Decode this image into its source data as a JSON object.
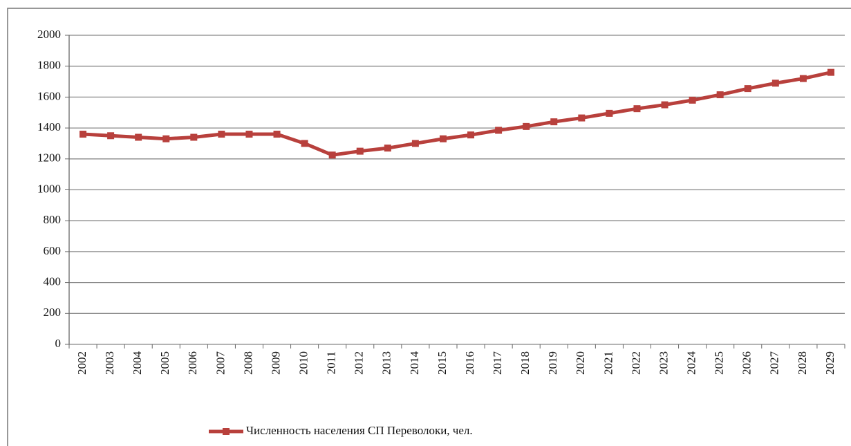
{
  "chart_data": {
    "type": "line",
    "categories": [
      "2002",
      "2003",
      "2004",
      "2005",
      "2006",
      "2007",
      "2008",
      "2009",
      "2010",
      "2011",
      "2012",
      "2013",
      "2014",
      "2015",
      "2016",
      "2017",
      "2018",
      "2019",
      "2020",
      "2021",
      "2022",
      "2023",
      "2024",
      "2025",
      "2026",
      "2027",
      "2028",
      "2029"
    ],
    "series": [
      {
        "name": "Численность населения СП Переволоки, чел.",
        "color": "#b8403c",
        "values": [
          1360,
          1350,
          1340,
          1330,
          1340,
          1360,
          1360,
          1360,
          1300,
          1225,
          1250,
          1270,
          1300,
          1330,
          1355,
          1385,
          1410,
          1440,
          1465,
          1495,
          1525,
          1550,
          1580,
          1615,
          1655,
          1690,
          1720,
          1760
        ]
      }
    ],
    "ylim": [
      0,
      2000
    ],
    "yticks": [
      0,
      200,
      400,
      600,
      800,
      1000,
      1200,
      1400,
      1600,
      1800,
      2000
    ],
    "grid": true,
    "legend": "bottom"
  }
}
